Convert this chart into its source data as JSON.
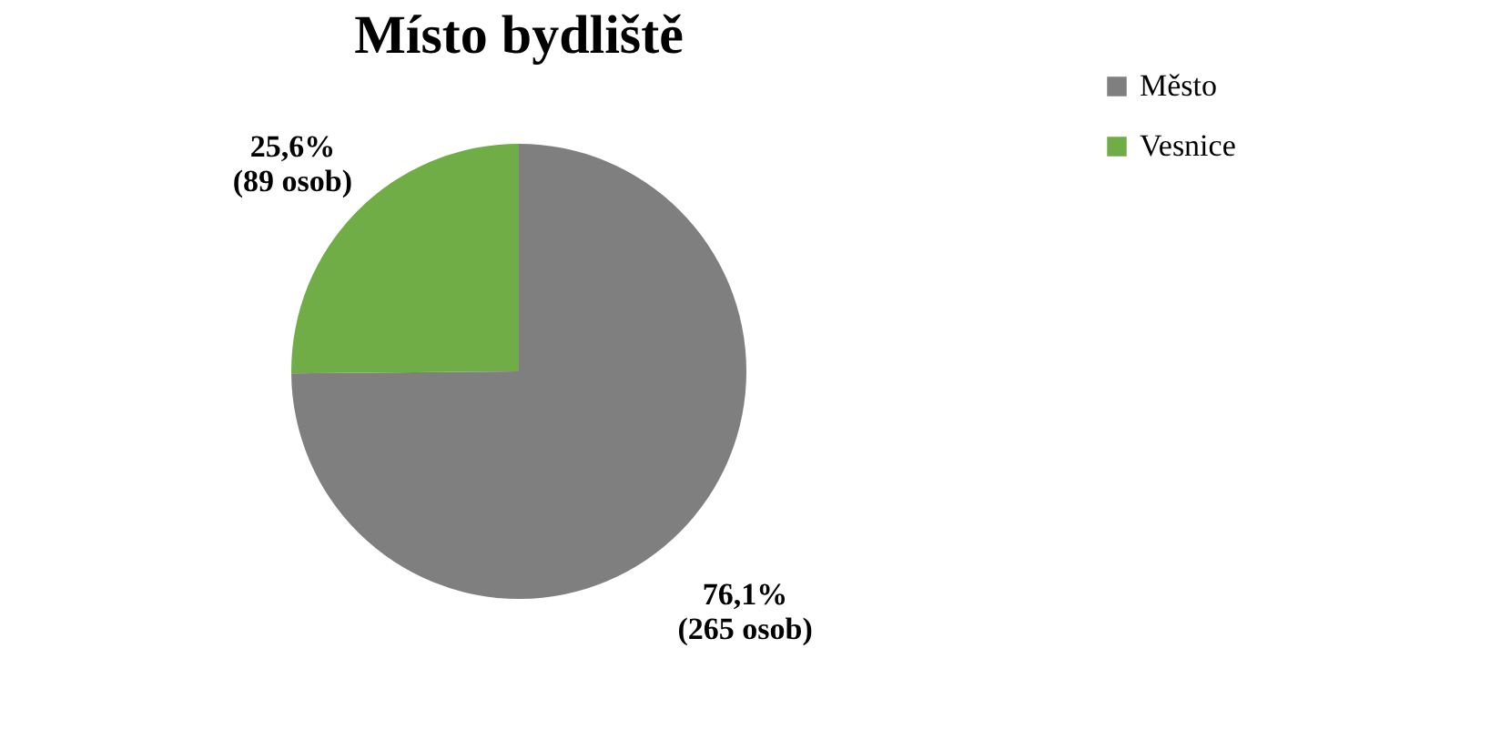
{
  "chart_data": {
    "type": "pie",
    "title": "Místo bydliště",
    "categories": [
      "Město",
      "Vesnice"
    ],
    "values": [
      265,
      89
    ],
    "colors": [
      "#7f7f7f",
      "#70ad47"
    ],
    "value_labels": [
      "76,1%\n(265 osob)",
      "25,6%\n(89 osob)"
    ],
    "legend": "right"
  }
}
